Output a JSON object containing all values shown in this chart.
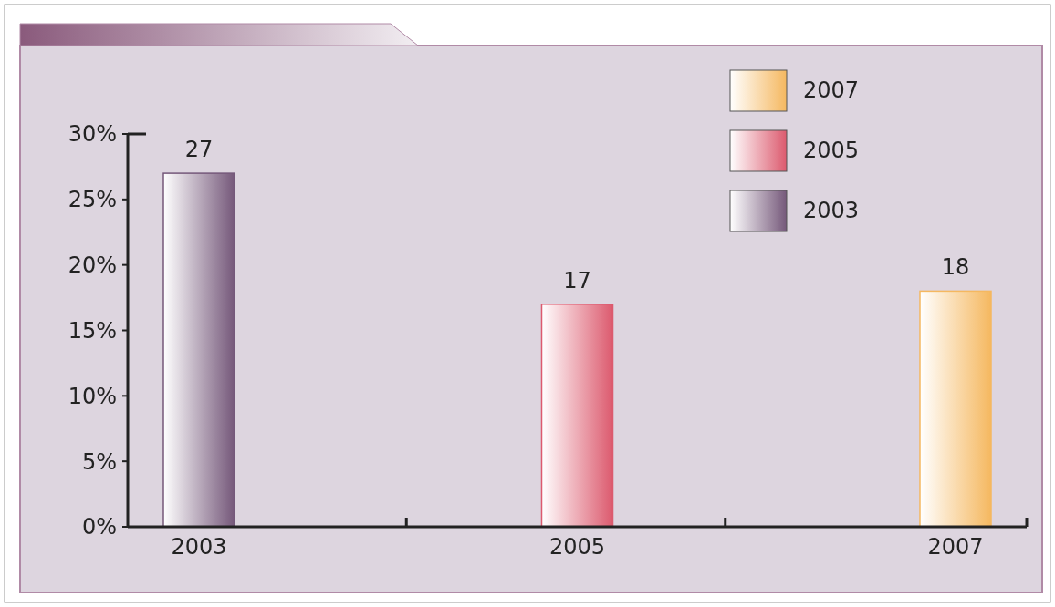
{
  "chart_data": {
    "type": "bar",
    "categories": [
      "2003",
      "2005",
      "2007"
    ],
    "series": [
      {
        "name": "2007",
        "color": "#f5b860",
        "values": [
          null,
          null,
          18
        ]
      },
      {
        "name": "2005",
        "color": "#dc5a6e",
        "values": [
          null,
          17,
          null
        ]
      },
      {
        "name": "2003",
        "color": "#75587a",
        "values": [
          27,
          null,
          null
        ]
      }
    ],
    "ylim": [
      0,
      30
    ],
    "yticks": [
      {
        "value": 0,
        "label": "0%"
      },
      {
        "value": 5,
        "label": "5%"
      },
      {
        "value": 10,
        "label": "10%"
      },
      {
        "value": 15,
        "label": "15%"
      },
      {
        "value": 20,
        "label": "20%"
      },
      {
        "value": 25,
        "label": "25%"
      },
      {
        "value": 30,
        "label": "30%"
      }
    ],
    "data_labels": true,
    "legend": "top right"
  }
}
